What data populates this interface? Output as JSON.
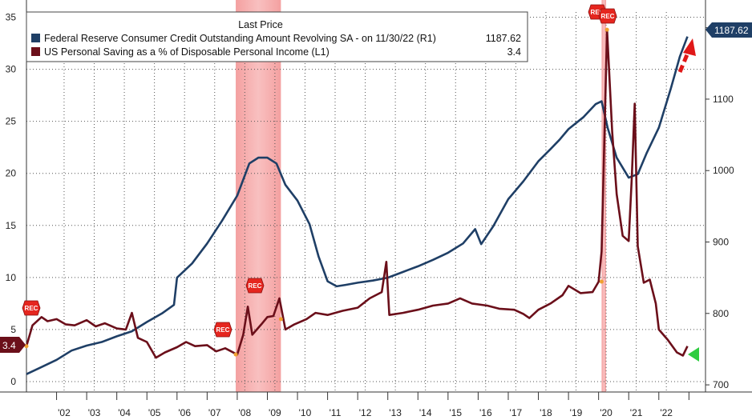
{
  "chart_data": {
    "type": "line",
    "legend": {
      "title": "Last Price",
      "entries": [
        {
          "label": "Federal Reserve Consumer Credit Outstanding Amount Revolving SA -  on 11/30/22  (R1)",
          "value": "1187.62",
          "color": "#1f3f66"
        },
        {
          "label": "US Personal Saving as a % of Disposable Personal Income  (L1)",
          "value": "3.4",
          "color": "#6b0f1a"
        }
      ],
      "placement": "top-left"
    },
    "x_ticks": [
      "'02",
      "'03",
      "'04",
      "'05",
      "'06",
      "'07",
      "'08",
      "'09",
      "'10",
      "'11",
      "'12",
      "'13",
      "'14",
      "'15",
      "'16",
      "'17",
      "'18",
      "'19",
      "'20",
      "'21",
      "'22"
    ],
    "left_axis": {
      "ticks": [
        "0",
        "5",
        "10",
        "15",
        "20",
        "25",
        "30",
        "35"
      ],
      "range": [
        -1,
        35.5
      ]
    },
    "right_axis": {
      "ticks": [
        "700",
        "800",
        "900",
        "1000",
        "1100",
        "1200"
      ],
      "range": [
        690,
        1222
      ]
    },
    "grid": true,
    "recessions": [
      {
        "start": 2007.95,
        "end": 2009.45
      },
      {
        "start": 2020.1,
        "end": 2020.25
      }
    ],
    "rec_label": "REC",
    "series": [
      {
        "name": "Federal Reserve Consumer Credit Outstanding Amount Revolving SA",
        "axis": "right",
        "color": "#1f3f66",
        "points": [
          [
            2001.0,
            715
          ],
          [
            2001.5,
            725
          ],
          [
            2002.0,
            735
          ],
          [
            2002.5,
            748
          ],
          [
            2003.0,
            755
          ],
          [
            2003.5,
            760
          ],
          [
            2004.0,
            768
          ],
          [
            2004.5,
            775
          ],
          [
            2005.0,
            788
          ],
          [
            2005.5,
            800
          ],
          [
            2005.9,
            812
          ],
          [
            2006.0,
            850
          ],
          [
            2006.5,
            870
          ],
          [
            2007.0,
            898
          ],
          [
            2007.5,
            930
          ],
          [
            2008.0,
            965
          ],
          [
            2008.4,
            1010
          ],
          [
            2008.7,
            1018
          ],
          [
            2009.0,
            1018
          ],
          [
            2009.3,
            1010
          ],
          [
            2009.6,
            980
          ],
          [
            2010.0,
            958
          ],
          [
            2010.4,
            925
          ],
          [
            2010.7,
            880
          ],
          [
            2011.0,
            845
          ],
          [
            2011.3,
            838
          ],
          [
            2011.6,
            840
          ],
          [
            2012.0,
            843
          ],
          [
            2012.5,
            846
          ],
          [
            2013.0,
            850
          ],
          [
            2013.5,
            858
          ],
          [
            2014.0,
            866
          ],
          [
            2014.5,
            875
          ],
          [
            2015.0,
            885
          ],
          [
            2015.5,
            898
          ],
          [
            2015.9,
            918
          ],
          [
            2016.1,
            897
          ],
          [
            2016.5,
            922
          ],
          [
            2017.0,
            960
          ],
          [
            2017.5,
            985
          ],
          [
            2018.0,
            1013
          ],
          [
            2018.4,
            1030
          ],
          [
            2018.7,
            1043
          ],
          [
            2019.0,
            1058
          ],
          [
            2019.5,
            1075
          ],
          [
            2019.9,
            1093
          ],
          [
            2020.1,
            1097
          ],
          [
            2020.3,
            1060
          ],
          [
            2020.6,
            1018
          ],
          [
            2021.0,
            990
          ],
          [
            2021.3,
            995
          ],
          [
            2021.6,
            1025
          ],
          [
            2022.0,
            1060
          ],
          [
            2022.4,
            1115
          ],
          [
            2022.7,
            1160
          ],
          [
            2022.95,
            1187.62
          ]
        ]
      },
      {
        "name": "US Personal Saving as a % of Disposable Personal Income",
        "axis": "left",
        "color": "#6b0f1a",
        "points": [
          [
            2001.0,
            3.4
          ],
          [
            2001.2,
            5.4
          ],
          [
            2001.5,
            6.2
          ],
          [
            2001.7,
            5.8
          ],
          [
            2002.0,
            6.0
          ],
          [
            2002.3,
            5.5
          ],
          [
            2002.6,
            5.4
          ],
          [
            2003.0,
            5.9
          ],
          [
            2003.3,
            5.3
          ],
          [
            2003.6,
            5.6
          ],
          [
            2004.0,
            5.1
          ],
          [
            2004.3,
            5.0
          ],
          [
            2004.5,
            6.6
          ],
          [
            2004.7,
            4.2
          ],
          [
            2005.0,
            3.8
          ],
          [
            2005.3,
            2.3
          ],
          [
            2005.6,
            2.8
          ],
          [
            2006.0,
            3.3
          ],
          [
            2006.3,
            3.8
          ],
          [
            2006.6,
            3.4
          ],
          [
            2007.0,
            3.5
          ],
          [
            2007.3,
            2.9
          ],
          [
            2007.6,
            3.2
          ],
          [
            2008.0,
            2.6
          ],
          [
            2008.2,
            4.5
          ],
          [
            2008.35,
            7.2
          ],
          [
            2008.5,
            4.5
          ],
          [
            2008.8,
            5.5
          ],
          [
            2009.0,
            6.2
          ],
          [
            2009.2,
            6.3
          ],
          [
            2009.4,
            8.0
          ],
          [
            2009.6,
            5.0
          ],
          [
            2009.9,
            5.5
          ],
          [
            2010.3,
            6.0
          ],
          [
            2010.6,
            6.6
          ],
          [
            2011.0,
            6.4
          ],
          [
            2011.5,
            6.8
          ],
          [
            2012.0,
            7.1
          ],
          [
            2012.4,
            8.0
          ],
          [
            2012.8,
            8.6
          ],
          [
            2012.95,
            11.5
          ],
          [
            2013.05,
            6.4
          ],
          [
            2013.5,
            6.6
          ],
          [
            2014.0,
            6.9
          ],
          [
            2014.5,
            7.3
          ],
          [
            2015.0,
            7.5
          ],
          [
            2015.4,
            8.0
          ],
          [
            2015.8,
            7.5
          ],
          [
            2016.3,
            7.3
          ],
          [
            2016.7,
            7.0
          ],
          [
            2017.2,
            6.9
          ],
          [
            2017.5,
            6.5
          ],
          [
            2017.7,
            6.1
          ],
          [
            2018.0,
            6.9
          ],
          [
            2018.4,
            7.5
          ],
          [
            2018.8,
            8.3
          ],
          [
            2019.0,
            9.2
          ],
          [
            2019.4,
            8.5
          ],
          [
            2019.8,
            8.6
          ],
          [
            2020.0,
            9.6
          ],
          [
            2020.1,
            12.5
          ],
          [
            2020.28,
            33.8
          ],
          [
            2020.45,
            24.0
          ],
          [
            2020.6,
            18.0
          ],
          [
            2020.8,
            14.0
          ],
          [
            2021.0,
            13.5
          ],
          [
            2021.1,
            19.5
          ],
          [
            2021.2,
            26.7
          ],
          [
            2021.3,
            13.0
          ],
          [
            2021.5,
            9.5
          ],
          [
            2021.7,
            9.8
          ],
          [
            2021.9,
            7.5
          ],
          [
            2022.0,
            5.0
          ],
          [
            2022.3,
            4.0
          ],
          [
            2022.6,
            2.8
          ],
          [
            2022.8,
            2.5
          ],
          [
            2022.95,
            3.4
          ]
        ]
      }
    ],
    "last_value_labels": {
      "left": "3.4",
      "right": "1187.62"
    }
  }
}
